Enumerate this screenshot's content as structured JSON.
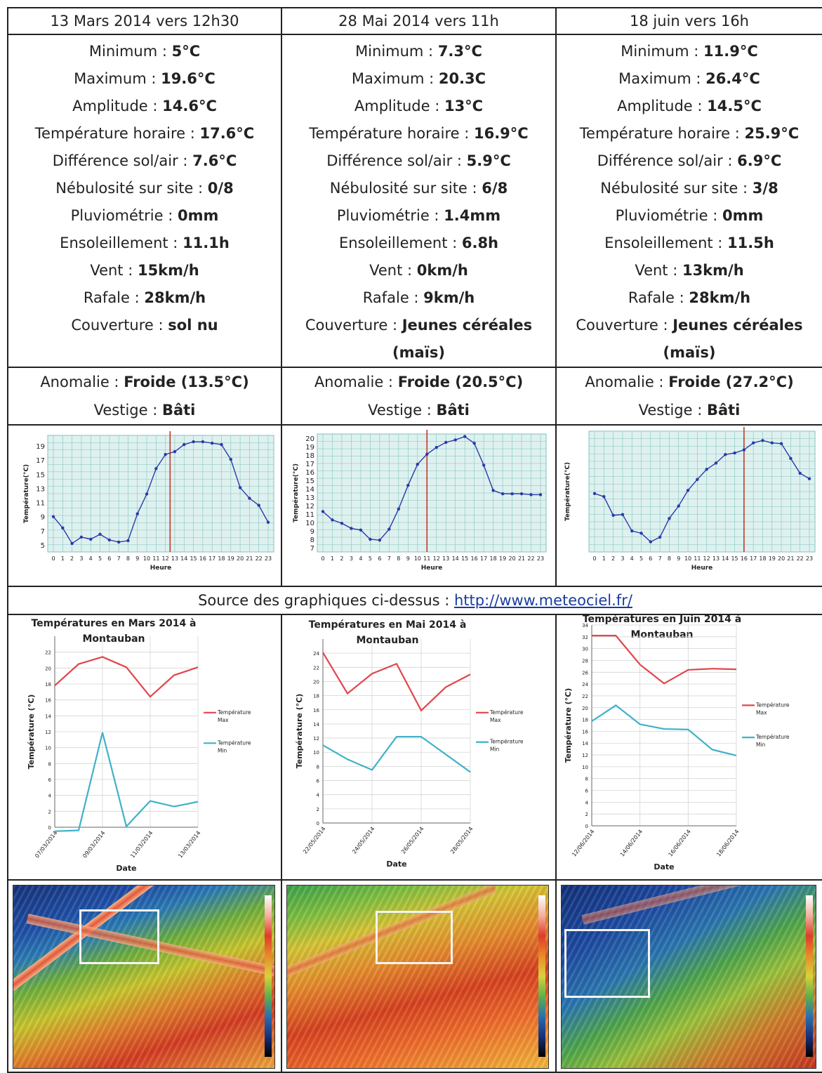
{
  "columns": [
    {
      "header": "13 Mars 2014 vers 12h30",
      "params": [
        {
          "label": "Minimum : ",
          "value": "5°C"
        },
        {
          "label": "Maximum : ",
          "value": "19.6°C"
        },
        {
          "label": "Amplitude : ",
          "value": "14.6°C"
        },
        {
          "label": "Température horaire : ",
          "value": "17.6°C"
        },
        {
          "label": "Différence sol/air : ",
          "value": "7.6°C"
        },
        {
          "label": "Nébulosité sur site : ",
          "value": "0/8"
        },
        {
          "label": "Pluviométrie : ",
          "value": "0mm"
        },
        {
          "label": "Ensoleillement : ",
          "value": "11.1h"
        },
        {
          "label": "Vent : ",
          "value": "15km/h"
        },
        {
          "label": "Rafale : ",
          "value": "28km/h"
        },
        {
          "label": "Couverture : ",
          "value": "sol nu"
        }
      ],
      "anomalie_label": "Anomalie : ",
      "anomalie_value": "Froide (13.5°C)",
      "vestige_label": "Vestige : ",
      "vestige_value": "Bâti"
    },
    {
      "header": "28 Mai 2014 vers 11h",
      "params": [
        {
          "label": "Minimum : ",
          "value": "7.3°C"
        },
        {
          "label": "Maximum : ",
          "value": "20.3C"
        },
        {
          "label": "Amplitude : ",
          "value": "13°C"
        },
        {
          "label": "Température horaire : ",
          "value": "16.9°C"
        },
        {
          "label": "Différence sol/air : ",
          "value": "5.9°C"
        },
        {
          "label": "Nébulosité sur site : ",
          "value": "6/8"
        },
        {
          "label": "Pluviométrie : ",
          "value": "1.4mm"
        },
        {
          "label": "Ensoleillement : ",
          "value": "6.8h"
        },
        {
          "label": "Vent : ",
          "value": "0km/h"
        },
        {
          "label": "Rafale : ",
          "value": "9km/h"
        },
        {
          "label": "Couverture : ",
          "value": "Jeunes céréales (maïs)"
        }
      ],
      "anomalie_label": "Anomalie : ",
      "anomalie_value": "Froide (20.5°C)",
      "vestige_label": "Vestige : ",
      "vestige_value": "Bâti"
    },
    {
      "header": "18 juin vers 16h",
      "params": [
        {
          "label": "Minimum : ",
          "value": "11.9°C"
        },
        {
          "label": "Maximum : ",
          "value": "26.4°C"
        },
        {
          "label": "Amplitude : ",
          "value": "14.5°C"
        },
        {
          "label": "Température horaire : ",
          "value": "25.9°C"
        },
        {
          "label": "Différence sol/air : ",
          "value": "6.9°C"
        },
        {
          "label": "Nébulosité sur site : ",
          "value": "3/8"
        },
        {
          "label": "Pluviométrie : ",
          "value": "0mm"
        },
        {
          "label": "Ensoleillement : ",
          "value": "11.5h"
        },
        {
          "label": "Vent : ",
          "value": "13km/h"
        },
        {
          "label": "Rafale : ",
          "value": "28km/h"
        },
        {
          "label": "Couverture : ",
          "value": "Jeunes céréales (maïs)"
        }
      ],
      "anomalie_label": "Anomalie : ",
      "anomalie_value": "Froide (27.2°C)",
      "vestige_label": "Vestige : ",
      "vestige_value": "Bâti"
    }
  ],
  "source": {
    "text": "Source des graphiques ci-dessus : ",
    "link": "http://www.meteociel.fr/"
  },
  "colors": {
    "hourly_line": "#2b3aa8",
    "hourly_marker": "#c0392b",
    "grid_bg": "#dff1ef",
    "grid_line": "#7fc4c0",
    "max_line": "#e0474c",
    "min_line": "#3fb2c8"
  },
  "chart_data": [
    {
      "type": "line",
      "ylabel": "Température(°C)",
      "xlabel": "Heure",
      "x": [
        0,
        1,
        2,
        3,
        4,
        5,
        6,
        7,
        8,
        9,
        10,
        11,
        12,
        13,
        14,
        15,
        16,
        17,
        18,
        19,
        20,
        21,
        22,
        23
      ],
      "y": [
        9,
        7.4,
        5.2,
        6.1,
        5.8,
        6.5,
        5.7,
        5.4,
        5.6,
        9.4,
        12.2,
        15.8,
        17.8,
        18.2,
        19.2,
        19.6,
        19.6,
        19.4,
        19.2,
        17.1,
        13.1,
        11.6,
        10.6,
        8.2
      ],
      "yticks": [
        5,
        7,
        9,
        11,
        13,
        15,
        17,
        19
      ],
      "ylim": [
        4,
        20.5
      ],
      "marker_x": 12.5
    },
    {
      "type": "line",
      "ylabel": "Température(°C)",
      "xlabel": "Heure",
      "x": [
        0,
        1,
        2,
        3,
        4,
        5,
        6,
        7,
        8,
        9,
        10,
        11,
        12,
        13,
        14,
        15,
        16,
        17,
        18,
        19,
        20,
        21,
        22,
        23
      ],
      "y": [
        11.3,
        10.3,
        9.9,
        9.3,
        9.1,
        8.0,
        7.9,
        9.2,
        11.6,
        14.4,
        16.9,
        18.1,
        18.9,
        19.5,
        19.8,
        20.2,
        19.4,
        16.8,
        13.8,
        13.4,
        13.4,
        13.4,
        13.3,
        13.3
      ],
      "yticks": [
        7,
        8,
        9,
        10,
        11,
        12,
        13,
        14,
        15,
        16,
        17,
        18,
        19,
        20
      ],
      "ylim": [
        6.5,
        20.5
      ],
      "marker_x": 11
    },
    {
      "type": "line",
      "ylabel": "Température(°C)",
      "xlabel": "Heure",
      "x": [
        0,
        1,
        2,
        3,
        4,
        5,
        6,
        7,
        8,
        9,
        10,
        11,
        12,
        13,
        14,
        15,
        16,
        17,
        18,
        19,
        20,
        21,
        22,
        23
      ],
      "y": [
        19,
        18.6,
        16.2,
        16.3,
        14.2,
        13.9,
        12.8,
        13.4,
        15.8,
        17.4,
        19.4,
        20.8,
        22.1,
        22.9,
        24.0,
        24.2,
        24.6,
        25.5,
        25.8,
        25.5,
        25.4,
        23.5,
        21.6,
        20.9
      ],
      "ylim": [
        11.5,
        27
      ],
      "marker_x": 16
    },
    {
      "type": "line",
      "title": "Températures en Mars 2014 à Montauban",
      "xlabel": "Date",
      "ylabel": "Température (°C)",
      "x": [
        "07/03/2014",
        "08/03/2014",
        "09/03/2014",
        "10/03/2014",
        "11/03/2014",
        "12/03/2014",
        "13/03/2014"
      ],
      "xtick_labels": [
        "07/03/2014",
        "09/03/2014",
        "11/03/2014",
        "13/03/2014"
      ],
      "ylim": [
        0,
        24
      ],
      "yticks": [
        0,
        2,
        4,
        6,
        8,
        10,
        12,
        14,
        16,
        18,
        20,
        22
      ],
      "series": [
        {
          "name": "Température Max",
          "values": [
            17.8,
            20.5,
            21.4,
            20.1,
            16.4,
            19.1,
            20.1
          ]
        },
        {
          "name": "Température Min",
          "values": [
            -0.5,
            -0.4,
            11.9,
            0.1,
            3.3,
            2.6,
            3.2
          ]
        }
      ]
    },
    {
      "type": "line",
      "title": "Températures en Mai 2014 à Montauban",
      "xlabel": "Date",
      "ylabel": "Température (°C)",
      "x": [
        "22/05/2014",
        "23/05/2014",
        "24/05/2014",
        "25/05/2014",
        "26/05/2014",
        "27/05/2014",
        "28/05/2014"
      ],
      "xtick_labels": [
        "22/05/2014",
        "24/05/2014",
        "26/05/2014",
        "28/05/2014"
      ],
      "ylim": [
        0,
        26
      ],
      "yticks": [
        0,
        2,
        4,
        6,
        8,
        10,
        12,
        14,
        16,
        18,
        20,
        22,
        24
      ],
      "series": [
        {
          "name": "Température Max",
          "values": [
            24.1,
            18.3,
            21.1,
            22.5,
            15.9,
            19.2,
            21.0
          ]
        },
        {
          "name": "Température Min",
          "values": [
            11.0,
            9.0,
            7.5,
            12.2,
            12.2,
            9.7,
            7.2
          ]
        }
      ]
    },
    {
      "type": "line",
      "title": "Températures en Juin 2014 à Montauban",
      "xlabel": "Date",
      "ylabel": "Température (°C)",
      "x": [
        "12/06/2014",
        "13/06/2014",
        "14/06/2014",
        "15/06/2014",
        "16/06/2014",
        "17/06/2014",
        "18/06/2014"
      ],
      "xtick_labels": [
        "12/06/2014",
        "14/06/2014",
        "16/06/2014",
        "18/06/2014"
      ],
      "ylim": [
        0,
        34
      ],
      "yticks": [
        0,
        2,
        4,
        6,
        8,
        10,
        12,
        14,
        16,
        18,
        20,
        22,
        24,
        26,
        28,
        30,
        32,
        34
      ],
      "series": [
        {
          "name": "Température Max",
          "values": [
            32.2,
            32.2,
            27.3,
            24.1,
            26.4,
            26.6,
            26.5
          ]
        },
        {
          "name": "Température Min",
          "values": [
            17.7,
            20.4,
            17.2,
            16.4,
            16.3,
            12.9,
            11.9
          ]
        }
      ]
    }
  ]
}
